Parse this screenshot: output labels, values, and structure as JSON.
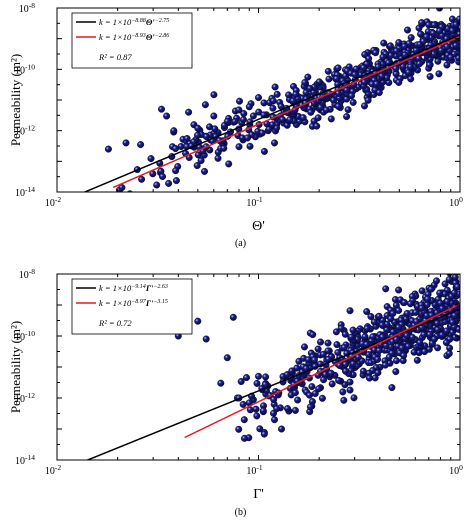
{
  "chart_data": [
    {
      "type": "scatter",
      "caption": "(a)",
      "xlabel": "Θ'",
      "ylabel": "Permeability (m²)",
      "xscale": "log",
      "yscale": "log",
      "xlim": [
        0.01,
        1
      ],
      "ylim": [
        1e-14,
        1e-08
      ],
      "xticklabels": [
        "10^-2",
        "10^-1",
        "10^0"
      ],
      "yticklabels": [
        "10^-14",
        "10^-12",
        "10^-10",
        "10^-8"
      ],
      "legend_position": "top-left",
      "legend": [
        {
          "prefix": "k = 1×10",
          "exp": "−8.88",
          "symbol": "Θ'",
          "pow": "2.75",
          "color": "#000000"
        },
        {
          "prefix": "k = 1×10",
          "exp": "−8.93",
          "symbol": "Θ'",
          "pow": "2.86",
          "color": "#e8191e"
        }
      ],
      "r2_label": "R² = 0.87",
      "fits": [
        {
          "color": "#000000",
          "log_a": -8.88,
          "b": 2.75,
          "x_range": [
            0.0135,
            1.0
          ]
        },
        {
          "color": "#e8191e",
          "log_a": -8.93,
          "b": 2.86,
          "x_range": [
            0.019,
            1.0
          ]
        }
      ],
      "scatter": {
        "x_range": [
          0.018,
          1.0
        ],
        "seed": 11,
        "count": 620,
        "log_a": -8.9,
        "b": 2.8,
        "spread": 0.42,
        "outliers": [
          [
            0.018,
            2.5e-13
          ],
          [
            0.022,
            4e-13
          ],
          [
            0.026,
            3.5e-13
          ],
          [
            0.033,
            5e-12
          ],
          [
            0.035,
            3e-12
          ],
          [
            0.038,
            1e-12
          ],
          [
            0.045,
            4e-12
          ],
          [
            0.05,
            1.2e-12
          ],
          [
            0.055,
            3e-13
          ],
          [
            0.06,
            3e-12
          ],
          [
            0.07,
            2e-12
          ],
          [
            0.08,
            3e-13
          ],
          [
            0.09,
            6e-12
          ],
          [
            0.1,
            1.2e-11
          ],
          [
            0.12,
            4e-13
          ]
        ]
      },
      "marker_color": "#1a1f8c"
    },
    {
      "type": "scatter",
      "caption": "(b)",
      "xlabel": "Γ'",
      "ylabel": "Permeability (m²)",
      "xscale": "log",
      "yscale": "log",
      "xlim": [
        0.01,
        1
      ],
      "ylim": [
        1e-14,
        1e-08
      ],
      "xticklabels": [
        "10^-2",
        "10^-1",
        "10^0"
      ],
      "yticklabels": [
        "10^-14",
        "10^-12",
        "10^-10",
        "10^-8"
      ],
      "legend_position": "top-left",
      "legend": [
        {
          "prefix": "k = 1×10",
          "exp": "−9.14",
          "symbol": "Γ'",
          "pow": "2.63",
          "color": "#000000"
        },
        {
          "prefix": "k = 1×10",
          "exp": "−8.97",
          "symbol": "Γ'",
          "pow": "3.15",
          "color": "#e8191e"
        }
      ],
      "r2_label": "R² = 0.72",
      "fits": [
        {
          "color": "#000000",
          "log_a": -9.14,
          "b": 2.63,
          "x_range": [
            0.0132,
            1.0
          ]
        },
        {
          "color": "#e8191e",
          "log_a": -8.97,
          "b": 3.15,
          "x_range": [
            0.043,
            1.0
          ]
        }
      ],
      "scatter": {
        "x_range": [
          0.06,
          1.0
        ],
        "seed": 29,
        "count": 620,
        "log_a": -9.0,
        "b": 3.0,
        "spread": 0.55,
        "outliers": [
          [
            0.04,
            1e-10
          ],
          [
            0.04,
            1.5e-10
          ],
          [
            0.05,
            3e-10
          ],
          [
            0.055,
            8e-11
          ],
          [
            0.07,
            2e-11
          ],
          [
            0.08,
            1e-12
          ],
          [
            0.085,
            2e-13
          ],
          [
            0.09,
            7e-13
          ],
          [
            0.1,
            5e-12
          ],
          [
            0.12,
            2e-13
          ],
          [
            0.13,
            1e-13
          ],
          [
            0.075,
            4e-10
          ],
          [
            0.065,
            3e-12
          ]
        ]
      },
      "marker_color": "#1a1f8c"
    }
  ]
}
